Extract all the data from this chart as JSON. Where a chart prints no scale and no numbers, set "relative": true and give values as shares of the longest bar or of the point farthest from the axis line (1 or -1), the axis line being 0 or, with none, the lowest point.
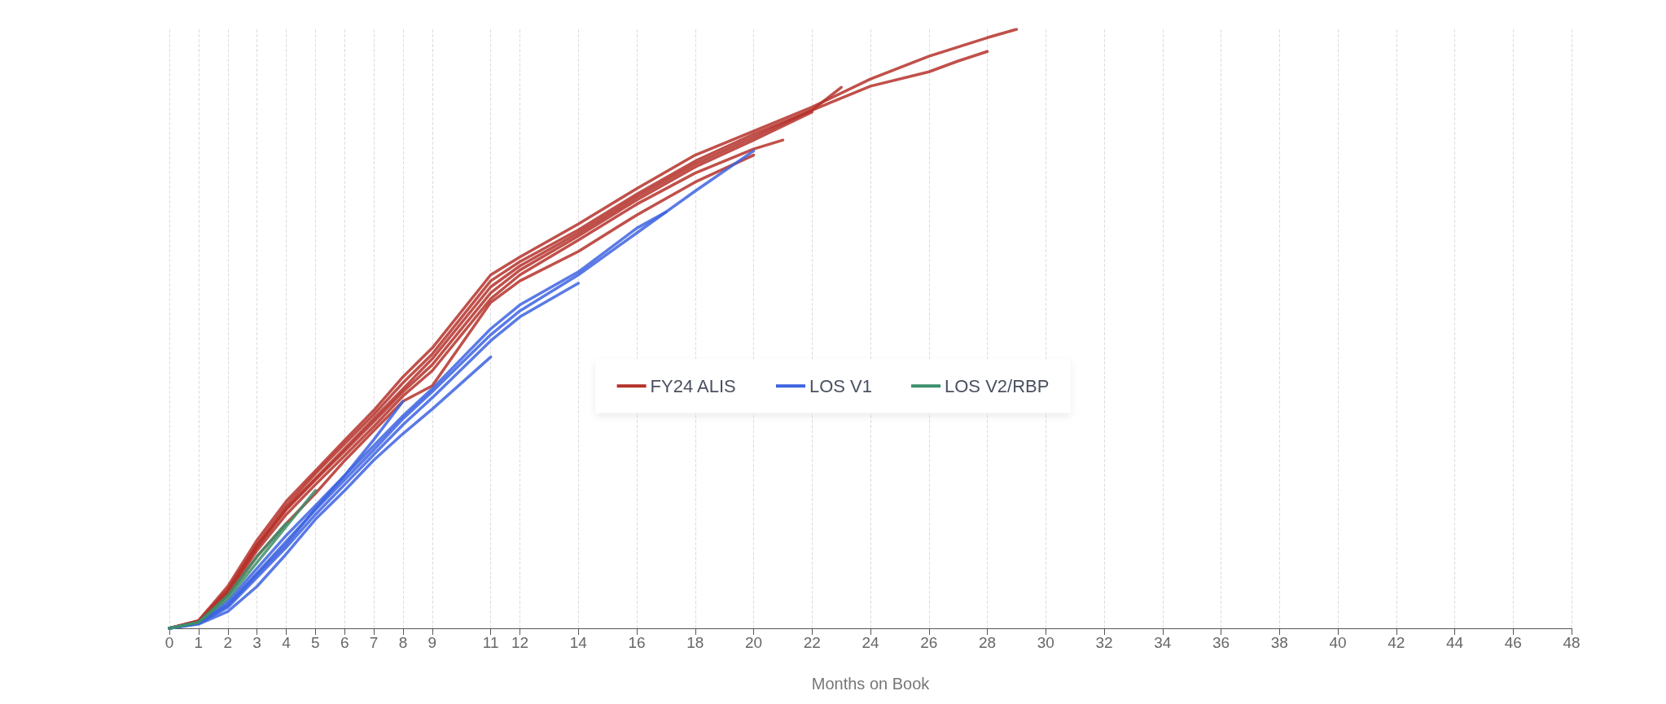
{
  "chart_data": {
    "type": "line",
    "xlabel": "Months on Book",
    "relative": true,
    "xlim": [
      0,
      48
    ],
    "xticks": [
      0,
      1,
      2,
      3,
      4,
      5,
      6,
      7,
      8,
      9,
      11,
      12,
      14,
      16,
      18,
      20,
      22,
      24,
      26,
      28,
      30,
      32,
      34,
      36,
      38,
      40,
      42,
      44,
      46,
      48
    ],
    "grid": "x",
    "legend": "center",
    "marker": "none",
    "line_style": "solid",
    "series": [
      {
        "name": "FY24 ALIS",
        "color": "#b5312a",
        "x": [
          0,
          1,
          2,
          3,
          4,
          5,
          6,
          7,
          8,
          9,
          11,
          12,
          14,
          16,
          18,
          20,
          22,
          24,
          26,
          28,
          29
        ],
        "values": [
          0,
          0.013,
          0.07,
          0.147,
          0.212,
          0.263,
          0.314,
          0.364,
          0.42,
          0.468,
          0.59,
          0.62,
          0.675,
          0.734,
          0.79,
          0.83,
          0.87,
          0.917,
          0.955,
          0.986,
          1.0
        ]
      },
      {
        "color": "#b5312a",
        "x": [
          0,
          1,
          2,
          3,
          4,
          5,
          6,
          7,
          8,
          9,
          11,
          12,
          14,
          16,
          18,
          20,
          22,
          24,
          26,
          27,
          28
        ],
        "values": [
          0,
          0.012,
          0.065,
          0.14,
          0.205,
          0.258,
          0.308,
          0.357,
          0.41,
          0.458,
          0.58,
          0.612,
          0.665,
          0.725,
          0.78,
          0.825,
          0.865,
          0.905,
          0.929,
          0.947,
          0.963
        ]
      },
      {
        "color": "#b5312a",
        "x": [
          0,
          1,
          2,
          3,
          4,
          5,
          6,
          7,
          8,
          9,
          11,
          12,
          14,
          16,
          18,
          20,
          22,
          23
        ],
        "values": [
          0,
          0.011,
          0.06,
          0.135,
          0.2,
          0.25,
          0.3,
          0.35,
          0.4,
          0.45,
          0.57,
          0.605,
          0.66,
          0.72,
          0.775,
          0.82,
          0.865,
          0.903
        ]
      },
      {
        "color": "#b5312a",
        "x": [
          0,
          1,
          2,
          3,
          4,
          5,
          6,
          7,
          8,
          9,
          11,
          12,
          14,
          16,
          18,
          20,
          22
        ],
        "values": [
          0,
          0.012,
          0.062,
          0.138,
          0.198,
          0.248,
          0.296,
          0.345,
          0.395,
          0.44,
          0.56,
          0.598,
          0.655,
          0.715,
          0.77,
          0.815,
          0.862
        ]
      },
      {
        "color": "#b5312a",
        "x": [
          0,
          1,
          2,
          3,
          4,
          5,
          6,
          7,
          8,
          9,
          11,
          12,
          14,
          16,
          18,
          20,
          21
        ],
        "values": [
          0,
          0.01,
          0.058,
          0.13,
          0.19,
          0.24,
          0.288,
          0.337,
          0.388,
          0.43,
          0.55,
          0.59,
          0.648,
          0.708,
          0.76,
          0.8,
          0.815
        ]
      },
      {
        "color": "#b5312a",
        "x": [
          0,
          1,
          2,
          3,
          4,
          5,
          6,
          7,
          8,
          9,
          11,
          12,
          14,
          16,
          18,
          20
        ],
        "values": [
          0,
          0.01,
          0.055,
          0.12,
          0.175,
          0.225,
          0.28,
          0.33,
          0.379,
          0.405,
          0.544,
          0.58,
          0.629,
          0.69,
          0.745,
          0.79
        ]
      },
      {
        "name": "LOS V1",
        "color": "#3d63e0",
        "x": [
          0,
          1,
          2,
          3,
          4,
          5,
          6,
          7,
          8,
          9,
          11,
          12,
          14,
          16,
          17,
          18,
          20
        ],
        "values": [
          0,
          0.01,
          0.045,
          0.1,
          0.155,
          0.205,
          0.255,
          0.305,
          0.355,
          0.4,
          0.5,
          0.54,
          0.595,
          0.668,
          0.695,
          0.73,
          0.797
        ]
      },
      {
        "color": "#3d63e0",
        "x": [
          0,
          1,
          2,
          3,
          4,
          5,
          6,
          7,
          8,
          9,
          11,
          12,
          14,
          16,
          17
        ],
        "values": [
          0,
          0.009,
          0.04,
          0.092,
          0.145,
          0.198,
          0.248,
          0.298,
          0.35,
          0.395,
          0.49,
          0.53,
          0.59,
          0.66,
          0.695
        ]
      },
      {
        "color": "#3d63e0",
        "x": [
          0,
          1,
          2,
          3,
          4,
          5,
          6,
          7,
          8,
          9,
          11,
          12,
          14
        ],
        "values": [
          0,
          0.008,
          0.035,
          0.085,
          0.135,
          0.19,
          0.24,
          0.29,
          0.34,
          0.385,
          0.48,
          0.52,
          0.576
        ]
      },
      {
        "color": "#3d63e0",
        "x": [
          0,
          1,
          2,
          3,
          4,
          5,
          6,
          7,
          8,
          9,
          11
        ],
        "values": [
          0,
          0.007,
          0.028,
          0.07,
          0.124,
          0.182,
          0.23,
          0.281,
          0.325,
          0.366,
          0.453
        ]
      },
      {
        "color": "#3d63e0",
        "x": [
          0,
          1,
          2,
          3,
          4,
          5,
          6,
          7,
          8
        ],
        "values": [
          0,
          0.008,
          0.038,
          0.09,
          0.14,
          0.2,
          0.255,
          0.315,
          0.379
        ]
      },
      {
        "name": "LOS V2/RBP",
        "color": "#3d8f6b",
        "x": [
          0,
          1,
          2,
          3,
          4,
          5
        ],
        "values": [
          0,
          0.01,
          0.05,
          0.11,
          0.17,
          0.23
        ]
      },
      {
        "color": "#3d8f6b",
        "x": [
          0,
          1,
          2,
          3,
          4
        ],
        "values": [
          0,
          0.01,
          0.055,
          0.12,
          0.175
        ]
      }
    ]
  }
}
